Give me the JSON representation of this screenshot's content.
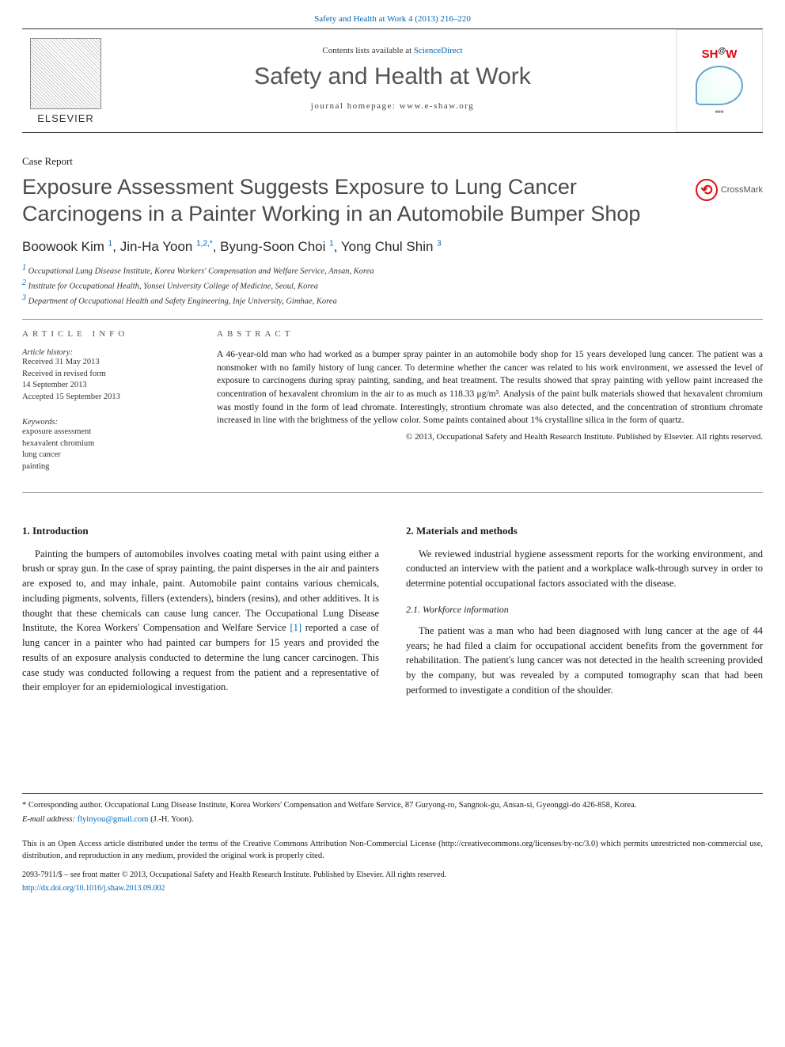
{
  "header": {
    "citation": "Safety and Health at Work 4 (2013) 216–220",
    "contents_line_prefix": "Contents lists available at ",
    "contents_link": "ScienceDirect",
    "journal_name": "Safety and Health at Work",
    "homepage_label": "journal homepage: ",
    "homepage_url": "www.e-shaw.org"
  },
  "elsevier_label": "ELSEVIER",
  "shaw_label_parts": {
    "sh": "SH",
    "at": "@",
    "w": "W"
  },
  "crossmark_label": "CrossMark",
  "article_type": "Case Report",
  "title": "Exposure Assessment Suggests Exposure to Lung Cancer Carcinogens in a Painter Working in an Automobile Bumper Shop",
  "authors": {
    "a1": {
      "name": "Boowook Kim",
      "sup": "1"
    },
    "a2": {
      "name": "Jin-Ha Yoon",
      "sup": "1,2,",
      "star": "*"
    },
    "a3": {
      "name": "Byung-Soon Choi",
      "sup": "1"
    },
    "a4": {
      "name": "Yong Chul Shin",
      "sup": "3"
    }
  },
  "affiliations": {
    "aff1": "Occupational Lung Disease Institute, Korea Workers' Compensation and Welfare Service, Ansan, Korea",
    "aff2": "Institute for Occupational Health, Yonsei University College of Medicine, Seoul, Korea",
    "aff3": "Department of Occupational Health and Safety Engineering, Inje University, Gimhae, Korea"
  },
  "article_info": {
    "heading": "article info",
    "history_label": "Article history:",
    "received": "Received 31 May 2013",
    "revised": "Received in revised form",
    "revised_date": "14 September 2013",
    "accepted": "Accepted 15 September 2013",
    "keywords_label": "Keywords:",
    "keywords": [
      "exposure assessment",
      "hexavalent chromium",
      "lung cancer",
      "painting"
    ]
  },
  "abstract": {
    "heading": "abstract",
    "text": "A 46-year-old man who had worked as a bumper spray painter in an automobile body shop for 15 years developed lung cancer. The patient was a nonsmoker with no family history of lung cancer. To determine whether the cancer was related to his work environment, we assessed the level of exposure to carcinogens during spray painting, sanding, and heat treatment. The results showed that spray painting with yellow paint increased the concentration of hexavalent chromium in the air to as much as 118.33 μg/m³. Analysis of the paint bulk materials showed that hexavalent chromium was mostly found in the form of lead chromate. Interestingly, strontium chromate was also detected, and the concentration of strontium chromate increased in line with the brightness of the yellow color. Some paints contained about 1% crystalline silica in the form of quartz.",
    "copyright": "© 2013, Occupational Safety and Health Research Institute. Published by Elsevier. All rights reserved."
  },
  "sections": {
    "intro_heading": "1. Introduction",
    "intro_p1": "Painting the bumpers of automobiles involves coating metal with paint using either a brush or spray gun. In the case of spray painting, the paint disperses in the air and painters are exposed to, and may inhale, paint. Automobile paint contains various chemicals, including pigments, solvents, fillers (extenders), binders (resins), and other additives. It is thought that these chemicals can cause lung cancer. The Occupational Lung Disease Institute, the Korea Workers' Compensation and Welfare Service ",
    "intro_ref1": "[1]",
    "intro_p1b": " reported a case of lung cancer in a painter who had painted car bumpers for 15 years and provided the results of an exposure analysis conducted to determine the lung cancer carcinogen. This case study was conducted following a request from the patient and a representative of their employer for an epidemiological investigation.",
    "methods_heading": "2. Materials and methods",
    "methods_p1": "We reviewed industrial hygiene assessment reports for the working environment, and conducted an interview with the patient and a workplace walk-through survey in order to determine potential occupational factors associated with the disease.",
    "workforce_heading": "2.1. Workforce information",
    "workforce_p1": "The patient was a man who had been diagnosed with lung cancer at the age of 44 years; he had filed a claim for occupational accident benefits from the government for rehabilitation. The patient's lung cancer was not detected in the health screening provided by the company, but was revealed by a computed tomography scan that had been performed to investigate a condition of the shoulder."
  },
  "footer": {
    "corresponding": "* Corresponding author. Occupational Lung Disease Institute, Korea Workers' Compensation and Welfare Service, 87 Guryong-ro, Sangnok-gu, Ansan-si, Gyeonggi-do 426-858, Korea.",
    "email_label": "E-mail address:",
    "email": "flyinyou@gmail.com",
    "email_author": " (J.-H. Yoon).",
    "license": "This is an Open Access article distributed under the terms of the Creative Commons Attribution Non-Commercial License (http://creativecommons.org/licenses/by-nc/3.0) which permits unrestricted non-commercial use, distribution, and reproduction in any medium, provided the original work is properly cited.",
    "copyright": "2093-7911/$ – see front matter © 2013, Occupational Safety and Health Research Institute. Published by Elsevier. All rights reserved.",
    "doi": "http://dx.doi.org/10.1016/j.shaw.2013.09.002"
  },
  "colors": {
    "link": "#0066b3",
    "title_gray": "#4a4a4a",
    "heading_gray": "#555"
  },
  "typography": {
    "body_pt": 12.5,
    "title_pt": 27,
    "journal_pt": 30,
    "authors_pt": 17,
    "meta_pt": 10.5,
    "abstract_pt": 11.5
  }
}
